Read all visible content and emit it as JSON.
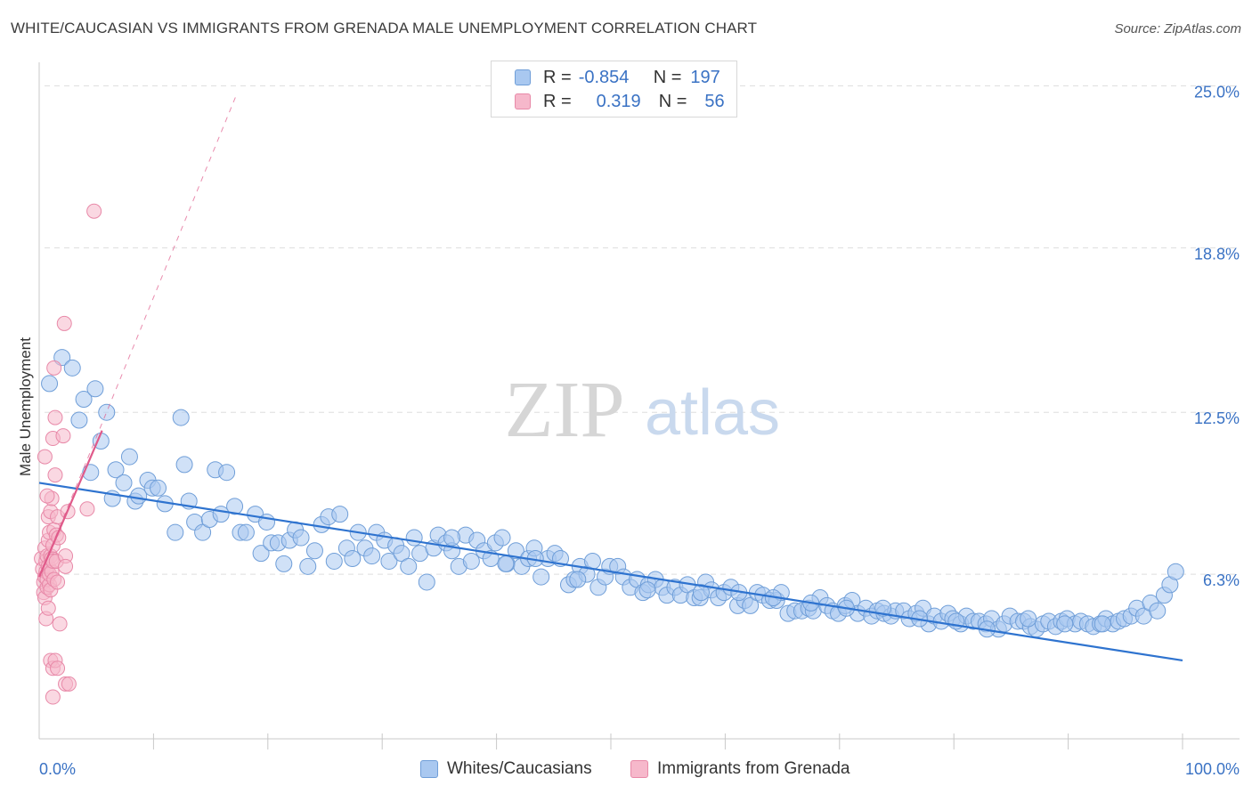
{
  "header": {
    "title": "WHITE/CAUCASIAN VS IMMIGRANTS FROM GRENADA MALE UNEMPLOYMENT CORRELATION CHART",
    "source": "Source: ZipAtlas.com"
  },
  "watermark": {
    "zip": "ZIP",
    "atlas": "atlas"
  },
  "legend_top": {
    "rows": [
      {
        "r_label": "R =",
        "r_value": "-0.854",
        "n_label": "N =",
        "n_value": "197"
      },
      {
        "r_label": "R =",
        "r_value": "0.319",
        "n_label": "N =",
        "n_value": "56"
      }
    ]
  },
  "legend_bottom": {
    "items": [
      {
        "label": "Whites/Caucasians"
      },
      {
        "label": "Immigrants from Grenada"
      }
    ]
  },
  "colors": {
    "blue_fill": "#a9c8f0",
    "blue_stroke": "#6f9ed8",
    "blue_line": "#2e73cf",
    "pink_fill": "#f6b8cb",
    "pink_stroke": "#e889a8",
    "pink_line": "#e05a8a",
    "tick_text": "#3a72c4",
    "grid": "#dddddd"
  },
  "chart_data": {
    "type": "scatter",
    "title": "WHITE/CAUCASIAN VS IMMIGRANTS FROM GRENADA MALE UNEMPLOYMENT CORRELATION CHART",
    "xlabel": "",
    "ylabel": "Male Unemployment",
    "xlim": [
      0,
      100
    ],
    "ylim": [
      0,
      25.9
    ],
    "x_tick_labels": [
      "0.0%",
      "100.0%"
    ],
    "y_ticks": [
      6.3,
      12.5,
      18.8,
      25.0
    ],
    "y_tick_labels": [
      "6.3%",
      "12.5%",
      "18.8%",
      "25.0%"
    ],
    "grid": true,
    "series": [
      {
        "name": "Whites/Caucasians",
        "r": -0.854,
        "n": 197,
        "trend": {
          "x": [
            0,
            100
          ],
          "y": [
            9.8,
            3.0
          ]
        },
        "points": [
          [
            0.9,
            13.6
          ],
          [
            2,
            14.6
          ],
          [
            2.9,
            14.2
          ],
          [
            3.5,
            12.2
          ],
          [
            3.9,
            13
          ],
          [
            4.5,
            10.2
          ],
          [
            4.9,
            13.4
          ],
          [
            5.4,
            11.4
          ],
          [
            5.9,
            12.5
          ],
          [
            6.4,
            9.2
          ],
          [
            6.7,
            10.3
          ],
          [
            7.4,
            9.8
          ],
          [
            7.9,
            10.8
          ],
          [
            8.4,
            9.1
          ],
          [
            8.7,
            9.3
          ],
          [
            9.5,
            9.9
          ],
          [
            9.9,
            9.6
          ],
          [
            10.4,
            9.6
          ],
          [
            11,
            9
          ],
          [
            11.9,
            7.9
          ],
          [
            12.4,
            12.3
          ],
          [
            12.7,
            10.5
          ],
          [
            13.1,
            9.1
          ],
          [
            13.6,
            8.3
          ],
          [
            14.3,
            7.9
          ],
          [
            14.9,
            8.4
          ],
          [
            15.4,
            10.3
          ],
          [
            15.9,
            8.6
          ],
          [
            16.4,
            10.2
          ],
          [
            17.1,
            8.9
          ],
          [
            17.6,
            7.9
          ],
          [
            18.1,
            7.9
          ],
          [
            18.9,
            8.6
          ],
          [
            19.4,
            7.1
          ],
          [
            19.9,
            8.3
          ],
          [
            20.3,
            7.5
          ],
          [
            20.9,
            7.5
          ],
          [
            21.4,
            6.7
          ],
          [
            21.9,
            7.6
          ],
          [
            22.4,
            8.0
          ],
          [
            22.9,
            7.7
          ],
          [
            23.5,
            6.6
          ],
          [
            24.1,
            7.2
          ],
          [
            24.7,
            8.2
          ],
          [
            25.3,
            8.5
          ],
          [
            25.8,
            6.8
          ],
          [
            26.3,
            8.6
          ],
          [
            26.9,
            7.3
          ],
          [
            27.4,
            6.9
          ],
          [
            27.9,
            7.9
          ],
          [
            28.5,
            7.3
          ],
          [
            29.1,
            7.0
          ],
          [
            29.5,
            7.9
          ],
          [
            30.2,
            7.6
          ],
          [
            30.6,
            6.8
          ],
          [
            31.2,
            7.4
          ],
          [
            31.7,
            7.1
          ],
          [
            32.3,
            6.6
          ],
          [
            32.8,
            7.7
          ],
          [
            33.3,
            7.1
          ],
          [
            33.9,
            6.0
          ],
          [
            34.5,
            7.3
          ],
          [
            34.9,
            7.8
          ],
          [
            35.6,
            7.5
          ],
          [
            36.1,
            7.2
          ],
          [
            36.7,
            6.6
          ],
          [
            37.3,
            7.8
          ],
          [
            37.8,
            6.8
          ],
          [
            38.3,
            7.6
          ],
          [
            38.9,
            7.2
          ],
          [
            39.5,
            6.9
          ],
          [
            39.9,
            7.5
          ],
          [
            40.5,
            7.7
          ],
          [
            40.9,
            6.7
          ],
          [
            41.7,
            7.2
          ],
          [
            42.2,
            6.6
          ],
          [
            42.8,
            6.9
          ],
          [
            43.3,
            7.3
          ],
          [
            43.9,
            6.2
          ],
          [
            44.5,
            6.9
          ],
          [
            45.1,
            7.1
          ],
          [
            45.6,
            6.9
          ],
          [
            46.3,
            5.9
          ],
          [
            46.8,
            6.1
          ],
          [
            47.3,
            6.6
          ],
          [
            47.9,
            6.3
          ],
          [
            48.4,
            6.8
          ],
          [
            48.9,
            5.8
          ],
          [
            49.5,
            6.2
          ],
          [
            49.9,
            6.6
          ],
          [
            50.6,
            6.6
          ],
          [
            51.1,
            6.2
          ],
          [
            51.7,
            5.8
          ],
          [
            52.3,
            6.1
          ],
          [
            52.8,
            5.6
          ],
          [
            53.3,
            5.9
          ],
          [
            53.9,
            6.1
          ],
          [
            54.5,
            5.8
          ],
          [
            54.9,
            5.5
          ],
          [
            55.6,
            5.8
          ],
          [
            56.1,
            5.5
          ],
          [
            56.7,
            5.9
          ],
          [
            57.3,
            5.4
          ],
          [
            57.8,
            5.4
          ],
          [
            58.3,
            6.0
          ],
          [
            58.8,
            5.7
          ],
          [
            59.4,
            5.4
          ],
          [
            59.9,
            5.6
          ],
          [
            60.5,
            5.8
          ],
          [
            61.1,
            5.1
          ],
          [
            61.7,
            5.3
          ],
          [
            62.2,
            5.1
          ],
          [
            62.8,
            5.6
          ],
          [
            63.3,
            5.5
          ],
          [
            63.9,
            5.3
          ],
          [
            64.5,
            5.3
          ],
          [
            64.9,
            5.6
          ],
          [
            65.5,
            4.8
          ],
          [
            66.1,
            4.9
          ],
          [
            66.7,
            4.9
          ],
          [
            67.3,
            5.0
          ],
          [
            67.7,
            4.9
          ],
          [
            68.3,
            5.4
          ],
          [
            68.9,
            5.1
          ],
          [
            69.4,
            4.9
          ],
          [
            69.9,
            4.8
          ],
          [
            70.5,
            5.1
          ],
          [
            71.1,
            5.3
          ],
          [
            71.6,
            4.8
          ],
          [
            72.3,
            5.0
          ],
          [
            72.8,
            4.7
          ],
          [
            73.3,
            4.9
          ],
          [
            73.9,
            4.8
          ],
          [
            74.5,
            4.7
          ],
          [
            74.9,
            4.9
          ],
          [
            75.6,
            4.9
          ],
          [
            76.1,
            4.6
          ],
          [
            76.7,
            4.8
          ],
          [
            77.3,
            5.0
          ],
          [
            77.8,
            4.4
          ],
          [
            78.3,
            4.7
          ],
          [
            78.9,
            4.5
          ],
          [
            79.5,
            4.8
          ],
          [
            79.9,
            4.6
          ],
          [
            80.6,
            4.4
          ],
          [
            81.1,
            4.7
          ],
          [
            81.7,
            4.5
          ],
          [
            82.2,
            4.5
          ],
          [
            82.8,
            4.4
          ],
          [
            83.3,
            4.6
          ],
          [
            83.9,
            4.2
          ],
          [
            84.4,
            4.4
          ],
          [
            84.9,
            4.7
          ],
          [
            85.6,
            4.5
          ],
          [
            86.1,
            4.5
          ],
          [
            86.7,
            4.3
          ],
          [
            87.2,
            4.2
          ],
          [
            87.8,
            4.4
          ],
          [
            88.3,
            4.5
          ],
          [
            88.9,
            4.3
          ],
          [
            89.4,
            4.5
          ],
          [
            89.9,
            4.6
          ],
          [
            90.6,
            4.4
          ],
          [
            91.1,
            4.5
          ],
          [
            91.7,
            4.4
          ],
          [
            92.2,
            4.3
          ],
          [
            92.8,
            4.4
          ],
          [
            93.3,
            4.6
          ],
          [
            93.9,
            4.4
          ],
          [
            94.4,
            4.5
          ],
          [
            94.9,
            4.6
          ],
          [
            95.5,
            4.7
          ],
          [
            96.0,
            5.0
          ],
          [
            96.6,
            4.7
          ],
          [
            97.2,
            5.2
          ],
          [
            97.8,
            4.9
          ],
          [
            98.4,
            5.5
          ],
          [
            98.9,
            5.9
          ],
          [
            99.4,
            6.4
          ],
          [
            36.1,
            7.7
          ],
          [
            40.8,
            6.7
          ],
          [
            43.4,
            6.9
          ],
          [
            47.1,
            6.1
          ],
          [
            53.2,
            5.7
          ],
          [
            57.9,
            5.6
          ],
          [
            61.2,
            5.6
          ],
          [
            64.2,
            5.4
          ],
          [
            67.5,
            5.2
          ],
          [
            70.6,
            5.0
          ],
          [
            73.8,
            5.0
          ],
          [
            77.0,
            4.6
          ],
          [
            80.2,
            4.5
          ],
          [
            82.9,
            4.2
          ],
          [
            86.5,
            4.6
          ],
          [
            89.7,
            4.4
          ],
          [
            93.0,
            4.4
          ]
        ]
      },
      {
        "name": "Immigrants from Grenada",
        "r": 0.319,
        "n": 56,
        "trend_solid": {
          "x": [
            0,
            5.5
          ],
          "y": [
            6.2,
            11.8
          ]
        },
        "trend_dashed": {
          "x": [
            0,
            17.2
          ],
          "y": [
            6.2,
            24.6
          ]
        },
        "points": [
          [
            0.2,
            6.9
          ],
          [
            0.3,
            6.5
          ],
          [
            0.4,
            6.0
          ],
          [
            0.4,
            5.6
          ],
          [
            0.5,
            7.3
          ],
          [
            0.5,
            6.2
          ],
          [
            0.5,
            5.4
          ],
          [
            0.6,
            6.8
          ],
          [
            0.6,
            6.4
          ],
          [
            0.7,
            5.8
          ],
          [
            0.7,
            7.0
          ],
          [
            0.7,
            6.1
          ],
          [
            0.8,
            7.6
          ],
          [
            0.8,
            8.5
          ],
          [
            0.8,
            6.6
          ],
          [
            0.9,
            5.9
          ],
          [
            0.9,
            6.3
          ],
          [
            0.9,
            7.9
          ],
          [
            1.0,
            7.0
          ],
          [
            1.0,
            8.7
          ],
          [
            1.0,
            5.7
          ],
          [
            1.1,
            6.4
          ],
          [
            1.1,
            9.2
          ],
          [
            1.1,
            6.9
          ],
          [
            1.2,
            7.4
          ],
          [
            1.2,
            11.5
          ],
          [
            1.2,
            6.8
          ],
          [
            1.3,
            8.0
          ],
          [
            1.3,
            6.1
          ],
          [
            1.3,
            14.2
          ],
          [
            1.4,
            12.3
          ],
          [
            1.4,
            10.1
          ],
          [
            1.5,
            7.8
          ],
          [
            1.5,
            6.8
          ],
          [
            1.6,
            8.5
          ],
          [
            1.6,
            6.0
          ],
          [
            1.7,
            7.7
          ],
          [
            1.8,
            4.4
          ],
          [
            0.6,
            4.6
          ],
          [
            0.8,
            5.0
          ],
          [
            1.0,
            3.0
          ],
          [
            1.2,
            2.7
          ],
          [
            1.4,
            3.0
          ],
          [
            1.6,
            2.7
          ],
          [
            1.2,
            1.6
          ],
          [
            2.3,
            2.1
          ],
          [
            2.6,
            2.1
          ],
          [
            2.2,
            15.9
          ],
          [
            2.1,
            11.6
          ],
          [
            2.3,
            7.0
          ],
          [
            2.3,
            6.6
          ],
          [
            2.5,
            8.7
          ],
          [
            4.2,
            8.8
          ],
          [
            4.8,
            20.2
          ],
          [
            0.5,
            10.8
          ],
          [
            0.7,
            9.3
          ]
        ]
      }
    ]
  }
}
